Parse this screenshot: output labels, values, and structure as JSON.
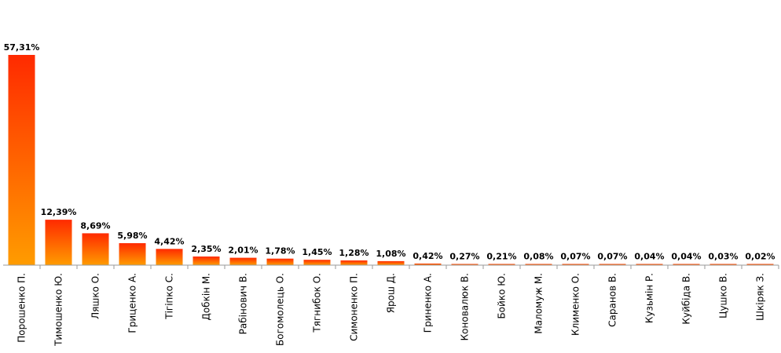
{
  "chart_data": {
    "type": "bar",
    "categories": [
      "Порошенко П.",
      "Тимошенко Ю.",
      "Ляшко О.",
      "Гриценко А.",
      "Тігіпко С.",
      "Добкін М.",
      "Рабінович В.",
      "Богомолець О.",
      "Тягнибок О.",
      "Симоненко П.",
      "Ярош Д.",
      "Гриненко А.",
      "Коновалюк В.",
      "Бойко Ю.",
      "Маломуж М.",
      "Клименко О.",
      "Саранов В.",
      "Кузьмін Р.",
      "Куйбіда В.",
      "Цушко В.",
      "Шкіряк З."
    ],
    "values": [
      57.31,
      12.39,
      8.69,
      5.98,
      4.42,
      2.35,
      2.01,
      1.78,
      1.45,
      1.28,
      1.08,
      0.42,
      0.27,
      0.21,
      0.08,
      0.07,
      0.07,
      0.04,
      0.04,
      0.03,
      0.02
    ],
    "value_labels": [
      "57,31%",
      "12,39%",
      "8,69%",
      "5,98%",
      "4,42%",
      "2,35%",
      "2,01%",
      "1,78%",
      "1,45%",
      "1,28%",
      "1,08%",
      "0,42%",
      "0,27%",
      "0,21%",
      "0,08%",
      "0,07%",
      "0,07%",
      "0,04%",
      "0,04%",
      "0,03%",
      "0,02%"
    ],
    "ylim": [
      0,
      57.31
    ],
    "grid": false,
    "legend": "none",
    "colors": {
      "bar_top": "#ff2a00",
      "bar_bottom": "#ff9c00",
      "axis": "#9a9a9a"
    }
  }
}
